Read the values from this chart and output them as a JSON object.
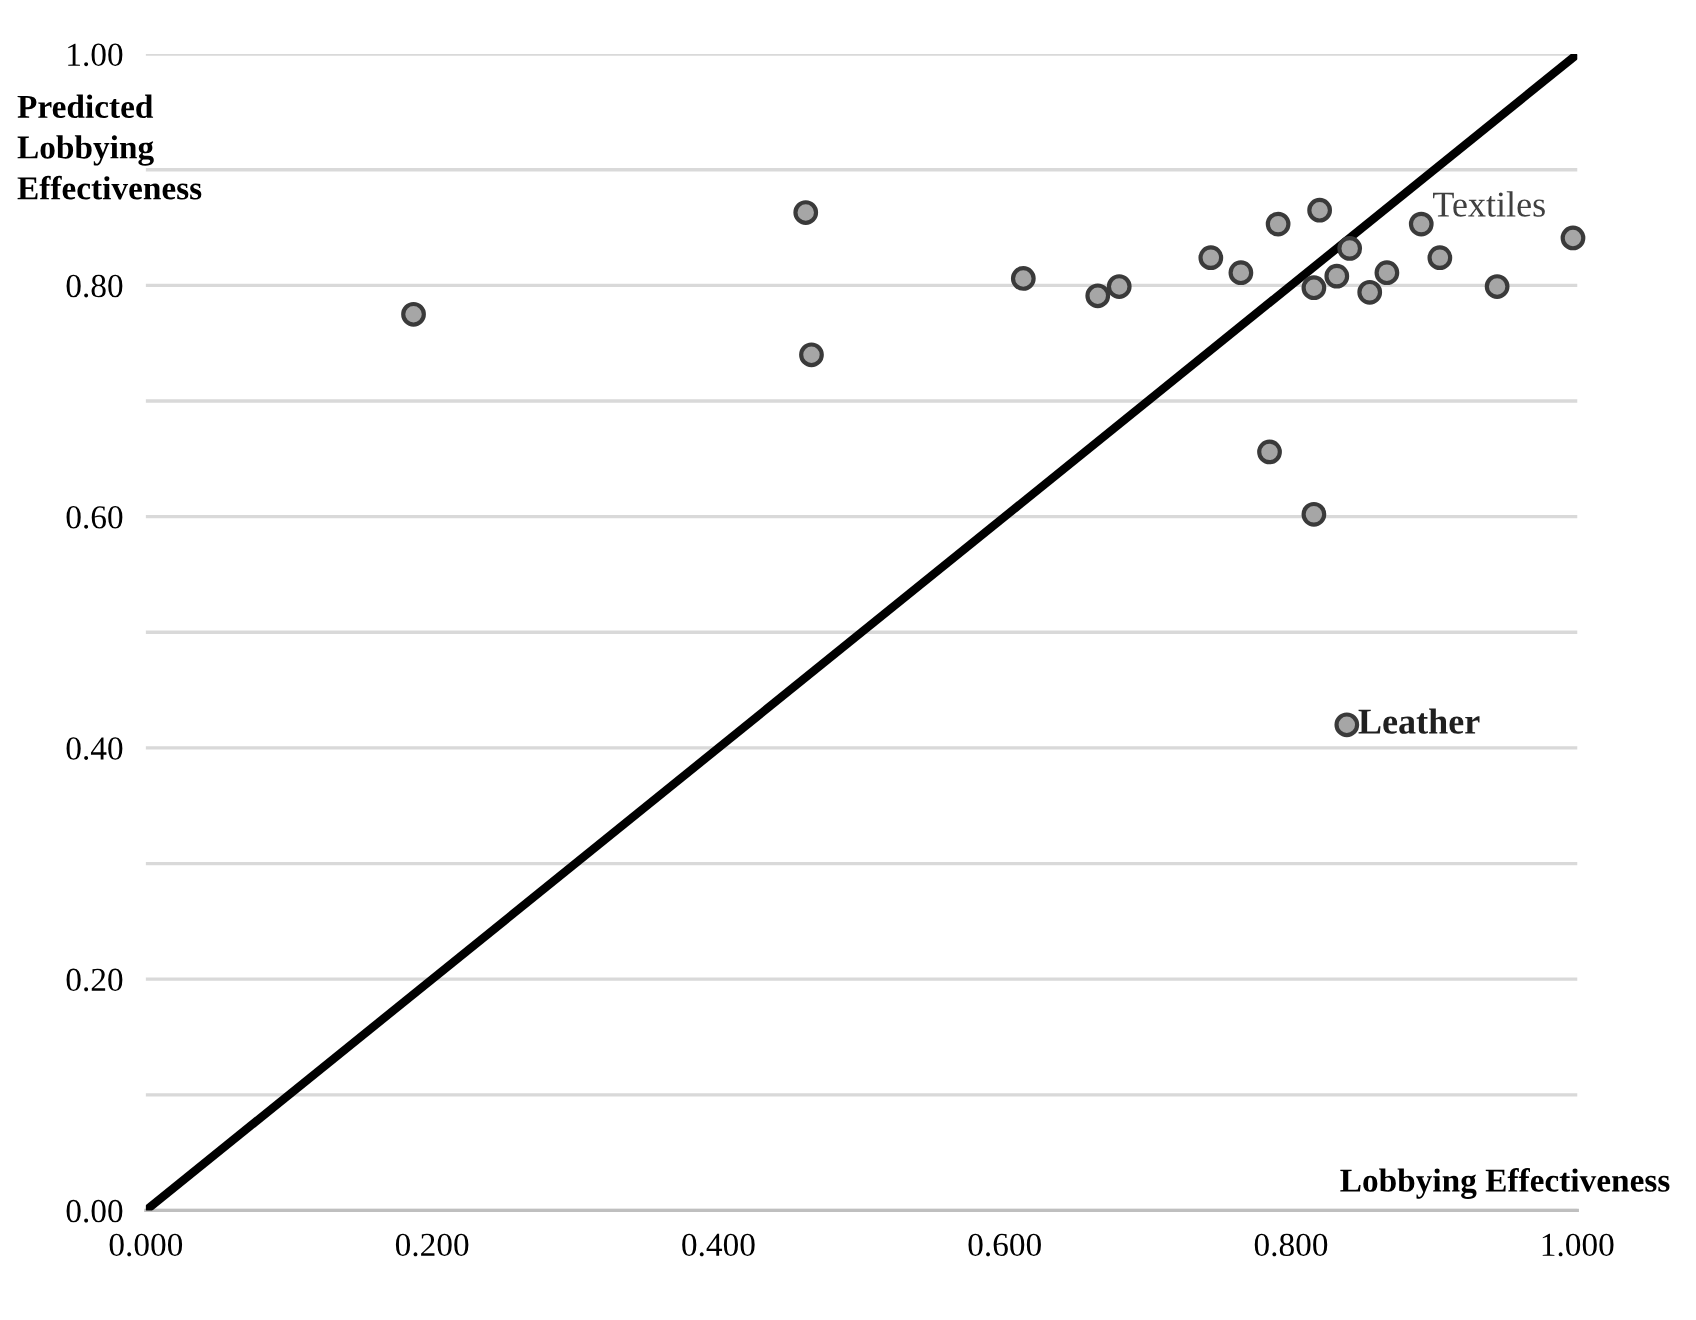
{
  "chart_data": {
    "type": "scatter",
    "xlabel": "Lobbying Effectiveness",
    "ylabel": "Predicted\nLobbying\nEffectiveness",
    "series": [
      {
        "marker": "circle",
        "color": "#a6a6a6",
        "x": [
          0.187,
          0.461,
          0.465,
          0.613,
          0.665,
          0.68,
          0.744,
          0.765,
          0.791,
          0.82,
          0.816,
          0.841,
          0.832,
          0.855,
          0.867,
          0.891,
          0.904,
          0.944,
          0.997,
          0.785,
          0.816,
          0.839
        ],
        "values": [
          0.775,
          0.863,
          0.74,
          0.806,
          0.791,
          0.799,
          0.824,
          0.811,
          0.853,
          0.865,
          0.798,
          0.832,
          0.808,
          0.794,
          0.811,
          0.853,
          0.824,
          0.799,
          0.841,
          0.656,
          0.602,
          0.42
        ]
      },
      {
        "type": "line",
        "marker": "none",
        "color": "#000000",
        "x": [
          0,
          1
        ],
        "values": [
          0,
          1
        ]
      }
    ],
    "annotations": [
      {
        "text": "Textiles",
        "x": 0.891,
        "y": 0.853
      },
      {
        "text": "Leather",
        "x": 0.839,
        "y": 0.42
      }
    ],
    "xlim": [
      0,
      1
    ],
    "ylim": [
      0,
      1
    ],
    "xticks": [
      {
        "value": 0,
        "label": "0.000"
      },
      {
        "value": 0.2,
        "label": "0.200"
      },
      {
        "value": 0.4,
        "label": "0.400"
      },
      {
        "value": 0.6,
        "label": "0.600"
      },
      {
        "value": 0.8,
        "label": "0.800"
      },
      {
        "value": 1,
        "label": "1.000"
      }
    ],
    "yticks": [
      {
        "value": 0,
        "label": "0.00"
      },
      {
        "value": 0.1,
        "label": null
      },
      {
        "value": 0.2,
        "label": "0.20"
      },
      {
        "value": 0.3,
        "label": null
      },
      {
        "value": 0.4,
        "label": "0.40"
      },
      {
        "value": 0.5,
        "label": null
      },
      {
        "value": 0.6,
        "label": "0.60"
      },
      {
        "value": 0.7,
        "label": null
      },
      {
        "value": 0.8,
        "label": "0.80"
      },
      {
        "value": 0.9,
        "label": null
      },
      {
        "value": 1,
        "label": "1.00"
      }
    ],
    "grid": "y",
    "legend": false
  }
}
